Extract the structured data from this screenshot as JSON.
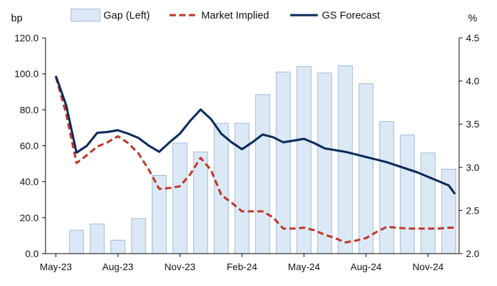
{
  "chart_data": {
    "type": "bar+line",
    "x": [
      "May-23",
      "Jun-23",
      "Jul-23",
      "Aug-23",
      "Sep-23",
      "Oct-23",
      "Nov-23",
      "Dec-23",
      "Jan-24",
      "Feb-24",
      "Mar-24",
      "Apr-24",
      "May-24",
      "Jun-24",
      "Jul-24",
      "Aug-24",
      "Sep-24",
      "Oct-24",
      "Nov-24",
      "Dec-24"
    ],
    "x_tick_labels": [
      "May-23",
      "Aug-23",
      "Nov-23",
      "Feb-24",
      "May-24",
      "Aug-24",
      "Nov-24"
    ],
    "y_left": {
      "unit_label": "bp",
      "min": 0,
      "max": 120,
      "ticks": [
        "0.0",
        "20.0",
        "40.0",
        "60.0",
        "80.0",
        "100.0",
        "120.0"
      ]
    },
    "y_right": {
      "unit_label": "%",
      "min": 2.0,
      "max": 4.5,
      "ticks": [
        "2.0",
        "2.5",
        "3.0",
        "3.5",
        "4.0",
        "4.5"
      ]
    },
    "bars": {
      "name": "Gap (Left)",
      "axis": "left",
      "color": "#dbe9f6",
      "edge_color": "#8ea9c8",
      "values": [
        null,
        13.0,
        16.5,
        7.5,
        19.5,
        43.5,
        61.5,
        56.5,
        72.5,
        72.5,
        88.5,
        101.0,
        104.0,
        100.5,
        104.5,
        94.5,
        73.5,
        66.0,
        56.0,
        47.0
      ]
    },
    "series": [
      {
        "name": "Market Implied",
        "axis": "right",
        "color": "#c0392b",
        "dash": "dashed",
        "points": [
          [
            0.0,
            4.05
          ],
          [
            0.5,
            3.62
          ],
          [
            1.0,
            3.05
          ],
          [
            1.5,
            3.14
          ],
          [
            2.0,
            3.24
          ],
          [
            2.5,
            3.29
          ],
          [
            3.0,
            3.36
          ],
          [
            3.5,
            3.28
          ],
          [
            4.0,
            3.16
          ],
          [
            4.5,
            2.97
          ],
          [
            5.0,
            2.75
          ],
          [
            5.5,
            2.76
          ],
          [
            6.0,
            2.78
          ],
          [
            6.5,
            2.92
          ],
          [
            7.0,
            3.11
          ],
          [
            7.5,
            2.97
          ],
          [
            8.0,
            2.68
          ],
          [
            8.5,
            2.59
          ],
          [
            9.0,
            2.49
          ],
          [
            9.5,
            2.49
          ],
          [
            10.0,
            2.49
          ],
          [
            10.5,
            2.42
          ],
          [
            11.0,
            2.29
          ],
          [
            11.5,
            2.29
          ],
          [
            12.0,
            2.3
          ],
          [
            12.5,
            2.27
          ],
          [
            13.0,
            2.22
          ],
          [
            13.5,
            2.18
          ],
          [
            14.0,
            2.13
          ],
          [
            14.5,
            2.15
          ],
          [
            15.0,
            2.18
          ],
          [
            15.5,
            2.25
          ],
          [
            16.0,
            2.31
          ],
          [
            16.5,
            2.3
          ],
          [
            17.0,
            2.29
          ],
          [
            17.5,
            2.29
          ],
          [
            18.0,
            2.29
          ],
          [
            18.5,
            2.29
          ],
          [
            19.0,
            2.3
          ],
          [
            19.3,
            2.3
          ]
        ]
      },
      {
        "name": "GS Forecast",
        "axis": "right",
        "color": "#0c2c5c",
        "dash": "solid",
        "points": [
          [
            0.0,
            4.06
          ],
          [
            0.5,
            3.72
          ],
          [
            1.0,
            3.17
          ],
          [
            1.5,
            3.25
          ],
          [
            2.0,
            3.4
          ],
          [
            2.5,
            3.41
          ],
          [
            3.0,
            3.43
          ],
          [
            3.5,
            3.39
          ],
          [
            4.0,
            3.34
          ],
          [
            4.5,
            3.25
          ],
          [
            5.0,
            3.18
          ],
          [
            5.5,
            3.29
          ],
          [
            6.0,
            3.39
          ],
          [
            6.5,
            3.54
          ],
          [
            7.0,
            3.67
          ],
          [
            7.5,
            3.56
          ],
          [
            8.0,
            3.39
          ],
          [
            8.5,
            3.29
          ],
          [
            9.0,
            3.21
          ],
          [
            9.5,
            3.29
          ],
          [
            10.0,
            3.38
          ],
          [
            10.5,
            3.35
          ],
          [
            11.0,
            3.29
          ],
          [
            11.5,
            3.31
          ],
          [
            12.0,
            3.33
          ],
          [
            12.5,
            3.28
          ],
          [
            13.0,
            3.22
          ],
          [
            13.5,
            3.2
          ],
          [
            14.0,
            3.18
          ],
          [
            14.5,
            3.15
          ],
          [
            15.0,
            3.12
          ],
          [
            15.5,
            3.09
          ],
          [
            16.0,
            3.06
          ],
          [
            16.5,
            3.02
          ],
          [
            17.0,
            2.98
          ],
          [
            17.5,
            2.94
          ],
          [
            18.0,
            2.89
          ],
          [
            18.5,
            2.84
          ],
          [
            19.0,
            2.79
          ],
          [
            19.3,
            2.69
          ]
        ]
      }
    ],
    "legend": {
      "placement": "top",
      "items": [
        {
          "label": "Gap (Left)",
          "kind": "bar"
        },
        {
          "label": "Market Implied",
          "kind": "dashed-line"
        },
        {
          "label": "GS Forecast",
          "kind": "solid-line"
        }
      ]
    },
    "grid": false
  }
}
